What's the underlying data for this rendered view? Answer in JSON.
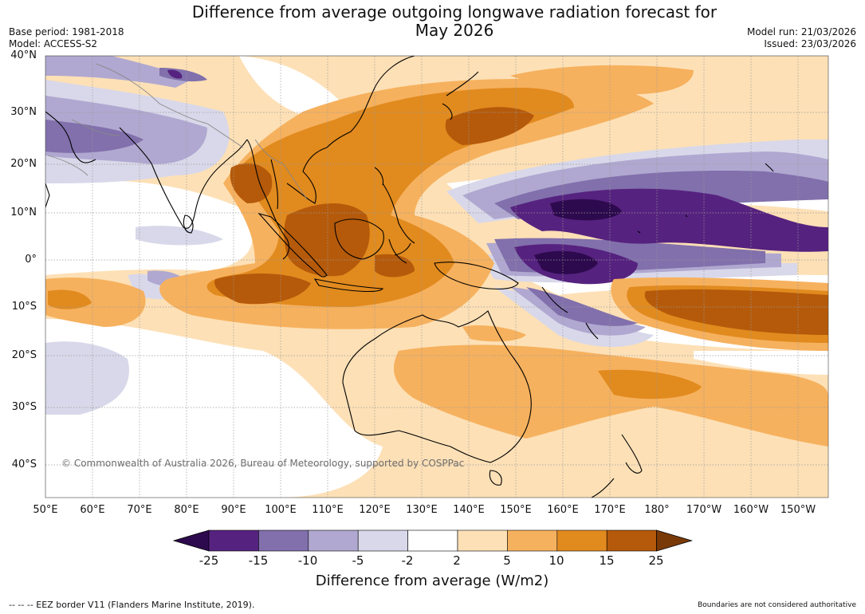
{
  "header": {
    "title_line1": "Difference from average outgoing longwave radiation forecast for",
    "title_line2": "May 2026",
    "base_period": "Base period: 1981-2018",
    "model": "Model: ACCESS-S2",
    "model_run": "Model run: 21/03/2026",
    "issued": "Issued: 23/03/2026"
  },
  "map": {
    "lat_labels": [
      "40°N",
      "30°N",
      "20°N",
      "10°N",
      "0°",
      "10°S",
      "20°S",
      "30°S",
      "40°S"
    ],
    "lon_labels": [
      "50°E",
      "60°E",
      "70°E",
      "80°E",
      "90°E",
      "100°E",
      "110°E",
      "120°E",
      "130°E",
      "140°E",
      "150°E",
      "160°E",
      "170°E",
      "180°",
      "170°W",
      "160°W",
      "150°W"
    ],
    "copyright": "© Commonwealth of Australia 2026, Bureau of Meteorology, supported by COSPPac"
  },
  "colorbar": {
    "ticks": [
      "-25",
      "-15",
      "-10",
      "-5",
      "-2",
      "2",
      "5",
      "10",
      "15",
      "25"
    ],
    "label": "Difference from average (W/m2)",
    "colors": [
      "#2d0a4e",
      "#56227f",
      "#8170ac",
      "#b0a8d0",
      "#d8d8ea",
      "#ffffff",
      "#fde0b6",
      "#f6b15e",
      "#e18a1e",
      "#b55a0a",
      "#7a3a08"
    ]
  },
  "footer": {
    "eez_note": "--  --  -- EEZ border V11 (Flanders Marine Institute, 2019).",
    "boundaries_note": "Boundaries are not considered authoritative"
  }
}
